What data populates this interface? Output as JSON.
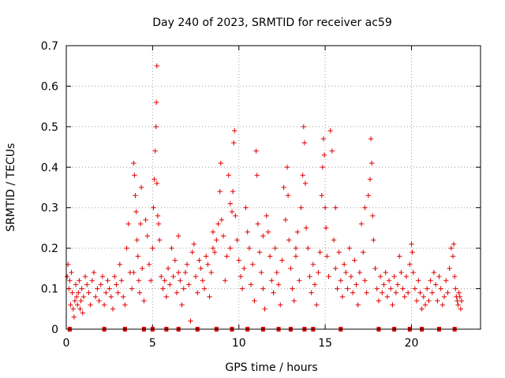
{
  "chart_data": {
    "type": "scatter",
    "title": "Day 240 of 2023, SRMTID for receiver ac59",
    "xlabel": "GPS time / hours",
    "ylabel": "SRMTID / TECUs",
    "xlim": [
      0,
      24
    ],
    "ylim": [
      0,
      0.7
    ],
    "xticks": [
      0,
      5,
      10,
      15,
      20
    ],
    "yticks": [
      0,
      0.1,
      0.2,
      0.3,
      0.4,
      0.5,
      0.6,
      0.7
    ],
    "xtick_labels": [
      "0",
      "5",
      "10",
      "15",
      "20"
    ],
    "ytick_labels": [
      "0",
      "0.1",
      "0.2",
      "0.3",
      "0.4",
      "0.5",
      "0.6",
      "0.7"
    ],
    "grid": true,
    "marker": "+",
    "color": "#e00000",
    "series": [
      {
        "name": "SRMTID",
        "points": [
          [
            0.05,
            0.13
          ],
          [
            0.1,
            0.16
          ],
          [
            0.15,
            0.1
          ],
          [
            0.2,
            0.12
          ],
          [
            0.25,
            0.06
          ],
          [
            0.3,
            0.14
          ],
          [
            0.35,
            0.09
          ],
          [
            0.4,
            0.05
          ],
          [
            0.45,
            0.03
          ],
          [
            0.5,
            0.07
          ],
          [
            0.55,
            0.11
          ],
          [
            0.6,
            0.08
          ],
          [
            0.65,
            0.06
          ],
          [
            0.7,
            0.09
          ],
          [
            0.75,
            0.12
          ],
          [
            0.8,
            0.05
          ],
          [
            0.85,
            0.07
          ],
          [
            0.9,
            0.1
          ],
          [
            0.95,
            0.04
          ],
          [
            1.0,
            0.08
          ],
          [
            1.1,
            0.13
          ],
          [
            1.2,
            0.11
          ],
          [
            1.3,
            0.09
          ],
          [
            1.4,
            0.06
          ],
          [
            1.5,
            0.12
          ],
          [
            1.6,
            0.14
          ],
          [
            1.7,
            0.08
          ],
          [
            1.8,
            0.1
          ],
          [
            1.9,
            0.07
          ],
          [
            2.0,
            0.11
          ],
          [
            2.1,
            0.13
          ],
          [
            2.2,
            0.06
          ],
          [
            2.3,
            0.09
          ],
          [
            2.4,
            0.12
          ],
          [
            2.5,
            0.1
          ],
          [
            2.6,
            0.08
          ],
          [
            2.7,
            0.05
          ],
          [
            2.8,
            0.13
          ],
          [
            2.9,
            0.11
          ],
          [
            3.0,
            0.09
          ],
          [
            3.1,
            0.16
          ],
          [
            3.2,
            0.12
          ],
          [
            3.3,
            0.08
          ],
          [
            3.4,
            0.06
          ],
          [
            3.5,
            0.2
          ],
          [
            3.6,
            0.26
          ],
          [
            3.7,
            0.14
          ],
          [
            3.8,
            0.1
          ],
          [
            3.9,
            0.41
          ],
          [
            3.95,
            0.38
          ],
          [
            4.0,
            0.33
          ],
          [
            4.05,
            0.29
          ],
          [
            4.1,
            0.22
          ],
          [
            4.15,
            0.18
          ],
          [
            4.2,
            0.12
          ],
          [
            4.25,
            0.09
          ],
          [
            4.3,
            0.26
          ],
          [
            4.35,
            0.35
          ],
          [
            4.4,
            0.15
          ],
          [
            4.5,
            0.07
          ],
          [
            4.6,
            0.27
          ],
          [
            4.7,
            0.23
          ],
          [
            4.8,
            0.16
          ],
          [
            4.9,
            0.12
          ],
          [
            5.0,
            0.2
          ],
          [
            5.05,
            0.3
          ],
          [
            5.1,
            0.37
          ],
          [
            5.15,
            0.44
          ],
          [
            5.2,
            0.5
          ],
          [
            5.22,
            0.56
          ],
          [
            5.25,
            0.65
          ],
          [
            5.3,
            0.28
          ],
          [
            5.35,
            0.26
          ],
          [
            5.4,
            0.22
          ],
          [
            5.5,
            0.13
          ],
          [
            5.6,
            0.1
          ],
          [
            5.7,
            0.12
          ],
          [
            5.8,
            0.08
          ],
          [
            5.9,
            0.15
          ],
          [
            6.0,
            0.11
          ],
          [
            6.1,
            0.2
          ],
          [
            6.2,
            0.13
          ],
          [
            6.3,
            0.17
          ],
          [
            6.4,
            0.09
          ],
          [
            6.5,
            0.14
          ],
          [
            6.6,
            0.12
          ],
          [
            6.7,
            0.06
          ],
          [
            6.8,
            0.1
          ],
          [
            6.9,
            0.14
          ],
          [
            7.0,
            0.16
          ],
          [
            7.1,
            0.11
          ],
          [
            7.2,
            0.02
          ],
          [
            7.3,
            0.19
          ],
          [
            7.4,
            0.21
          ],
          [
            7.5,
            0.13
          ],
          [
            7.6,
            0.09
          ],
          [
            7.7,
            0.17
          ],
          [
            7.8,
            0.15
          ],
          [
            7.9,
            0.12
          ],
          [
            8.0,
            0.1
          ],
          [
            8.1,
            0.18
          ],
          [
            8.2,
            0.16
          ],
          [
            8.3,
            0.08
          ],
          [
            8.4,
            0.14
          ],
          [
            8.5,
            0.2
          ],
          [
            8.6,
            0.19
          ],
          [
            8.7,
            0.22
          ],
          [
            8.8,
            0.26
          ],
          [
            8.9,
            0.34
          ],
          [
            8.95,
            0.41
          ],
          [
            9.0,
            0.27
          ],
          [
            9.1,
            0.23
          ],
          [
            9.2,
            0.12
          ],
          [
            9.3,
            0.18
          ],
          [
            9.4,
            0.38
          ],
          [
            9.5,
            0.31
          ],
          [
            9.6,
            0.29
          ],
          [
            9.65,
            0.34
          ],
          [
            9.7,
            0.46
          ],
          [
            9.75,
            0.49
          ],
          [
            9.8,
            0.28
          ],
          [
            9.9,
            0.22
          ],
          [
            10.0,
            0.17
          ],
          [
            10.1,
            0.13
          ],
          [
            10.2,
            0.1
          ],
          [
            10.3,
            0.15
          ],
          [
            10.4,
            0.3
          ],
          [
            10.5,
            0.24
          ],
          [
            10.6,
            0.2
          ],
          [
            10.7,
            0.11
          ],
          [
            10.8,
            0.16
          ],
          [
            10.9,
            0.07
          ],
          [
            11.0,
            0.44
          ],
          [
            11.05,
            0.38
          ],
          [
            11.1,
            0.26
          ],
          [
            11.2,
            0.19
          ],
          [
            11.3,
            0.14
          ],
          [
            11.4,
            0.1
          ],
          [
            11.5,
            0.05
          ],
          [
            11.6,
            0.28
          ],
          [
            11.7,
            0.24
          ],
          [
            11.8,
            0.18
          ],
          [
            11.9,
            0.12
          ],
          [
            12.0,
            0.09
          ],
          [
            12.1,
            0.2
          ],
          [
            12.2,
            0.14
          ],
          [
            12.3,
            0.11
          ],
          [
            12.4,
            0.06
          ],
          [
            12.5,
            0.17
          ],
          [
            12.6,
            0.35
          ],
          [
            12.7,
            0.27
          ],
          [
            12.8,
            0.4
          ],
          [
            12.85,
            0.33
          ],
          [
            12.9,
            0.22
          ],
          [
            13.0,
            0.15
          ],
          [
            13.1,
            0.1
          ],
          [
            13.2,
            0.07
          ],
          [
            13.3,
            0.18
          ],
          [
            13.4,
            0.24
          ],
          [
            13.5,
            0.12
          ],
          [
            13.6,
            0.3
          ],
          [
            13.7,
            0.38
          ],
          [
            13.75,
            0.5
          ],
          [
            13.8,
            0.46
          ],
          [
            13.85,
            0.36
          ],
          [
            13.9,
            0.25
          ],
          [
            14.0,
            0.2
          ],
          [
            14.1,
            0.13
          ],
          [
            14.2,
            0.09
          ],
          [
            14.3,
            0.16
          ],
          [
            14.4,
            0.11
          ],
          [
            14.5,
            0.06
          ],
          [
            14.6,
            0.14
          ],
          [
            14.7,
            0.19
          ],
          [
            14.8,
            0.33
          ],
          [
            14.85,
            0.4
          ],
          [
            14.9,
            0.47
          ],
          [
            14.95,
            0.43
          ],
          [
            15.0,
            0.3
          ],
          [
            15.05,
            0.25
          ],
          [
            15.1,
            0.18
          ],
          [
            15.2,
            0.13
          ],
          [
            15.3,
            0.49
          ],
          [
            15.4,
            0.44
          ],
          [
            15.5,
            0.22
          ],
          [
            15.6,
            0.15
          ],
          [
            15.7,
            0.1
          ],
          [
            15.8,
            0.19
          ],
          [
            15.9,
            0.12
          ],
          [
            16.0,
            0.08
          ],
          [
            16.1,
            0.16
          ],
          [
            16.2,
            0.14
          ],
          [
            16.3,
            0.1
          ],
          [
            16.4,
            0.2
          ],
          [
            16.5,
            0.13
          ],
          [
            16.6,
            0.09
          ],
          [
            16.7,
            0.17
          ],
          [
            16.8,
            0.11
          ],
          [
            16.9,
            0.06
          ],
          [
            17.0,
            0.14
          ],
          [
            17.1,
            0.26
          ],
          [
            17.2,
            0.19
          ],
          [
            17.3,
            0.12
          ],
          [
            17.4,
            0.09
          ],
          [
            17.5,
            0.33
          ],
          [
            17.6,
            0.37
          ],
          [
            17.65,
            0.47
          ],
          [
            17.7,
            0.41
          ],
          [
            17.75,
            0.28
          ],
          [
            17.8,
            0.22
          ],
          [
            17.9,
            0.15
          ],
          [
            18.0,
            0.1
          ],
          [
            18.1,
            0.07
          ],
          [
            18.2,
            0.13
          ],
          [
            18.3,
            0.09
          ],
          [
            18.4,
            0.11
          ],
          [
            18.5,
            0.14
          ],
          [
            18.6,
            0.08
          ],
          [
            18.7,
            0.12
          ],
          [
            18.8,
            0.1
          ],
          [
            18.9,
            0.06
          ],
          [
            19.0,
            0.13
          ],
          [
            19.1,
            0.09
          ],
          [
            19.2,
            0.11
          ],
          [
            19.3,
            0.18
          ],
          [
            19.4,
            0.14
          ],
          [
            19.5,
            0.1
          ],
          [
            19.6,
            0.08
          ],
          [
            19.7,
            0.13
          ],
          [
            19.8,
            0.09
          ],
          [
            19.9,
            0.16
          ],
          [
            20.0,
            0.21
          ],
          [
            20.05,
            0.19
          ],
          [
            20.1,
            0.14
          ],
          [
            20.2,
            0.1
          ],
          [
            20.3,
            0.07
          ],
          [
            20.4,
            0.12
          ],
          [
            20.5,
            0.09
          ],
          [
            20.6,
            0.05
          ],
          [
            20.7,
            0.08
          ],
          [
            20.8,
            0.06
          ],
          [
            20.9,
            0.1
          ],
          [
            21.0,
            0.07
          ],
          [
            21.1,
            0.12
          ],
          [
            21.2,
            0.09
          ],
          [
            21.3,
            0.14
          ],
          [
            21.4,
            0.11
          ],
          [
            21.5,
            0.07
          ],
          [
            21.6,
            0.13
          ],
          [
            21.7,
            0.1
          ],
          [
            21.8,
            0.06
          ],
          [
            21.9,
            0.08
          ],
          [
            22.0,
            0.12
          ],
          [
            22.1,
            0.09
          ],
          [
            22.2,
            0.15
          ],
          [
            22.3,
            0.2
          ],
          [
            22.4,
            0.18
          ],
          [
            22.45,
            0.21
          ],
          [
            22.5,
            0.13
          ],
          [
            22.55,
            0.1
          ],
          [
            22.6,
            0.08
          ],
          [
            22.65,
            0.07
          ],
          [
            22.7,
            0.06
          ],
          [
            22.75,
            0.09
          ],
          [
            22.8,
            0.08
          ],
          [
            22.85,
            0.05
          ],
          [
            22.9,
            0.07
          ],
          [
            5.25,
            0.36
          ],
          [
            3.9,
            0.14
          ],
          [
            9.5,
            0.2
          ],
          [
            13.3,
            0.2
          ],
          [
            15.6,
            0.3
          ],
          [
            17.3,
            0.3
          ],
          [
            11.4,
            0.23
          ],
          [
            6.5,
            0.23
          ],
          [
            8.5,
            0.24
          ]
        ]
      }
    ],
    "baseline_markers": [
      0.2,
      2.2,
      3.4,
      4.5,
      5.0,
      5.8,
      6.5,
      7.6,
      8.7,
      9.6,
      10.5,
      11.4,
      12.3,
      13.0,
      13.8,
      14.3,
      15.9,
      18.1,
      19.0,
      19.9,
      20.6,
      21.6,
      22.5
    ]
  }
}
